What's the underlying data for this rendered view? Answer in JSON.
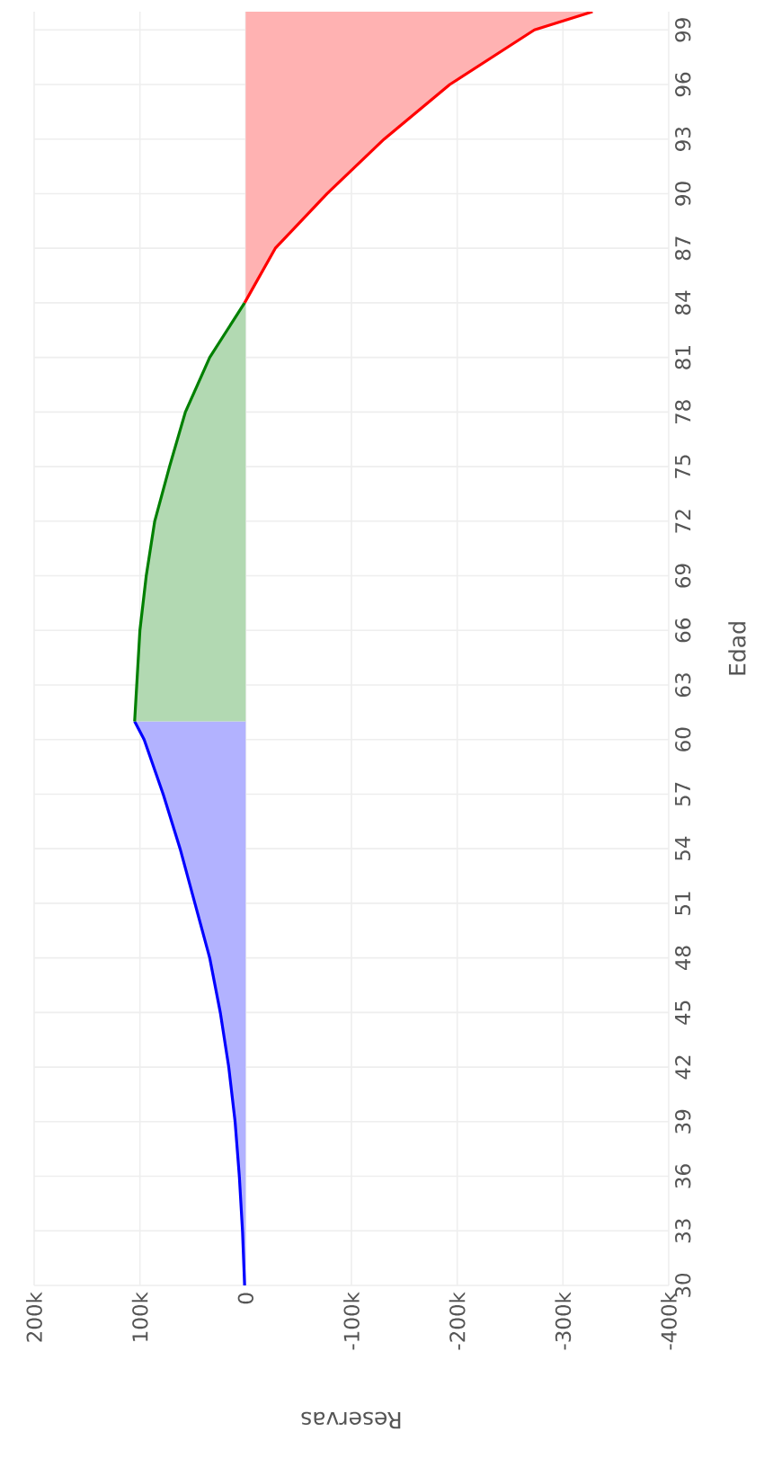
{
  "chart_data": {
    "type": "area",
    "orientation": "horizontal",
    "xlabel": "Reservas",
    "ylabel": "Edad",
    "xlim": [
      200000,
      -400000
    ],
    "xticks": [
      {
        "value": 200000,
        "label": "200k"
      },
      {
        "value": 100000,
        "label": "100k"
      },
      {
        "value": 0,
        "label": "0"
      },
      {
        "value": -100000,
        "label": "-100k"
      },
      {
        "value": -200000,
        "label": "-200k"
      },
      {
        "value": -300000,
        "label": "-300k"
      },
      {
        "value": -400000,
        "label": "-400k"
      }
    ],
    "ylim": [
      30,
      100
    ],
    "yticks": [
      30,
      33,
      36,
      39,
      42,
      45,
      48,
      51,
      54,
      57,
      60,
      63,
      66,
      69,
      72,
      75,
      78,
      81,
      84,
      87,
      90,
      93,
      96,
      99
    ],
    "grid": true,
    "series": [
      {
        "color": "#0000ff",
        "x": [
          30,
          33,
          36,
          39,
          42,
          45,
          48,
          51,
          54,
          57,
          60,
          61
        ],
        "values": [
          1000,
          3000,
          6000,
          10000,
          16000,
          24000,
          34000,
          48000,
          62000,
          78000,
          96000,
          105000
        ]
      },
      {
        "color": "#008000",
        "x": [
          61,
          63,
          66,
          69,
          72,
          75,
          78,
          81,
          84
        ],
        "values": [
          105000,
          103000,
          100000,
          94000,
          86000,
          72000,
          57000,
          34000,
          1000
        ]
      },
      {
        "color": "#ff0000",
        "x": [
          84,
          87,
          90,
          93,
          96,
          99,
          100
        ],
        "values": [
          1000,
          -28000,
          -77000,
          -131000,
          -193000,
          -273000,
          -328000
        ]
      }
    ]
  }
}
